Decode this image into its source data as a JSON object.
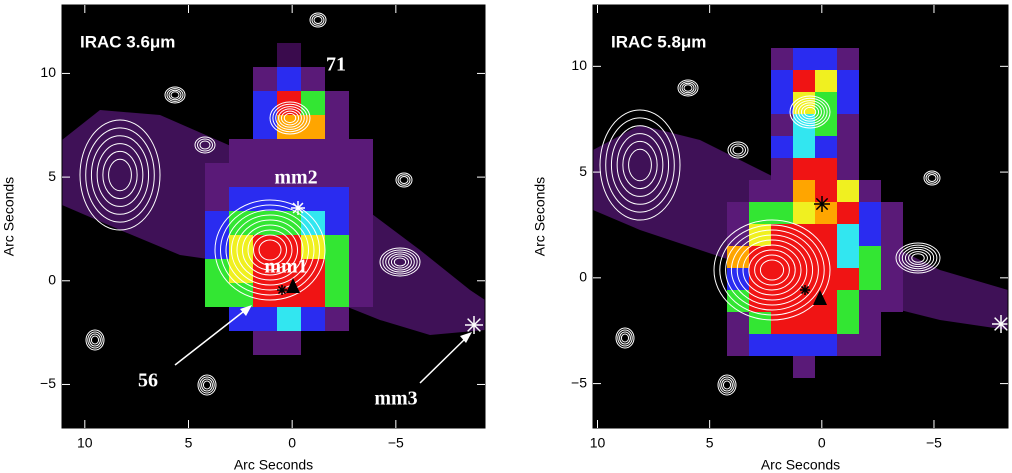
{
  "chart_data": [
    {
      "type": "image",
      "title": "IRAC 3.6μm",
      "xlabel": "Arc Seconds",
      "ylabel": "Arc Seconds",
      "xlim": [
        11.1,
        -9.3
      ],
      "ylim": [
        -7.1,
        13.3
      ],
      "xticks": [
        10,
        5,
        0,
        {
          "value": -5,
          "label": "−5"
        }
      ],
      "yticks": [
        {
          "value": -5,
          "label": "−5"
        },
        0,
        5,
        10
      ],
      "annotations": [
        "71",
        "mm2",
        "mm1",
        "56",
        "mm3"
      ]
    },
    {
      "type": "image",
      "title": "IRAC 5.8μm",
      "xlabel": "Arc Seconds",
      "ylabel": "Arc Seconds",
      "xlim": [
        10.2,
        -8.3
      ],
      "ylim": [
        -7.1,
        12.9
      ],
      "xticks": [
        10,
        5,
        0,
        {
          "value": -5,
          "label": "−5"
        }
      ],
      "yticks": [
        {
          "value": -5,
          "label": "−5"
        },
        0,
        5,
        10
      ]
    }
  ]
}
